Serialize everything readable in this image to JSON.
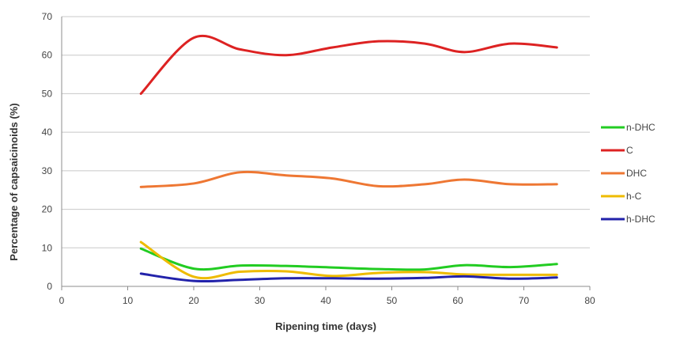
{
  "chart_data": {
    "type": "line",
    "title": "",
    "xlabel": "Ripening time (days)",
    "ylabel": "Percentage of capsaicinoids (%)",
    "xlim": [
      0,
      80
    ],
    "ylim": [
      0,
      70
    ],
    "x_ticks": [
      "0",
      "10",
      "20",
      "30",
      "40",
      "50",
      "60",
      "70",
      "80"
    ],
    "y_ticks": [
      "0",
      "10",
      "20",
      "30",
      "40",
      "50",
      "60",
      "70"
    ],
    "grid": "horizontal",
    "legend_position": "right",
    "x": [
      12,
      20,
      27,
      34,
      41,
      48,
      55,
      61,
      68,
      75
    ],
    "series": [
      {
        "name": "n-DHC",
        "color": "#22cc22",
        "values": [
          9.8,
          4.6,
          5.4,
          5.3,
          4.9,
          4.5,
          4.4,
          5.5,
          5.0,
          5.8
        ]
      },
      {
        "name": "C",
        "color": "#dd2222",
        "values": [
          50,
          64.5,
          61.5,
          60.0,
          62.0,
          63.6,
          63.0,
          60.8,
          63.0,
          62.0
        ]
      },
      {
        "name": "DHC",
        "color": "#ee7733",
        "values": [
          25.8,
          26.7,
          29.6,
          28.8,
          28.0,
          26.0,
          26.5,
          27.7,
          26.5,
          26.5
        ]
      },
      {
        "name": "h-C",
        "color": "#eebb00",
        "values": [
          11.5,
          2.5,
          3.8,
          3.9,
          2.7,
          3.5,
          3.7,
          3.1,
          3.0,
          3.0
        ]
      },
      {
        "name": "h-DHC",
        "color": "#2222aa",
        "values": [
          3.3,
          1.4,
          1.7,
          2.1,
          2.1,
          2.0,
          2.2,
          2.6,
          2.0,
          2.3
        ]
      }
    ]
  }
}
